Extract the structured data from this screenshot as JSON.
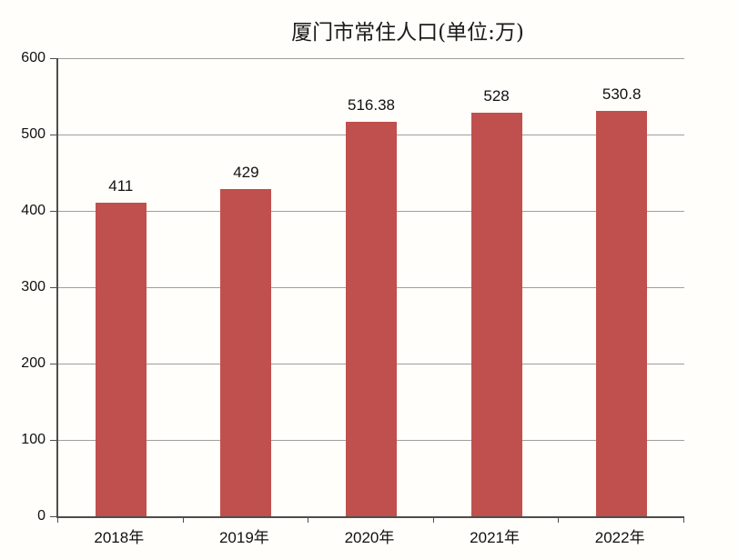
{
  "chart_data": {
    "type": "bar",
    "title": "厦门市常住人口(单位:万)",
    "categories": [
      "2018年",
      "2019年",
      "2020年",
      "2021年",
      "2022年"
    ],
    "values": [
      411,
      429,
      516.38,
      528,
      530.8
    ],
    "value_labels": [
      "411",
      "429",
      "516.38",
      "528",
      "530.8"
    ],
    "xlabel": "",
    "ylabel": "",
    "ylim": [
      0,
      600
    ],
    "yticks": [
      0,
      100,
      200,
      300,
      400,
      500,
      600
    ],
    "grid": true,
    "legend": "none",
    "bar_color": "#c0504d",
    "gridline_color": "#9e9e9e",
    "axis_color": "#4d4d4d",
    "text_color": "#111111",
    "background_color": "#fffefa"
  }
}
